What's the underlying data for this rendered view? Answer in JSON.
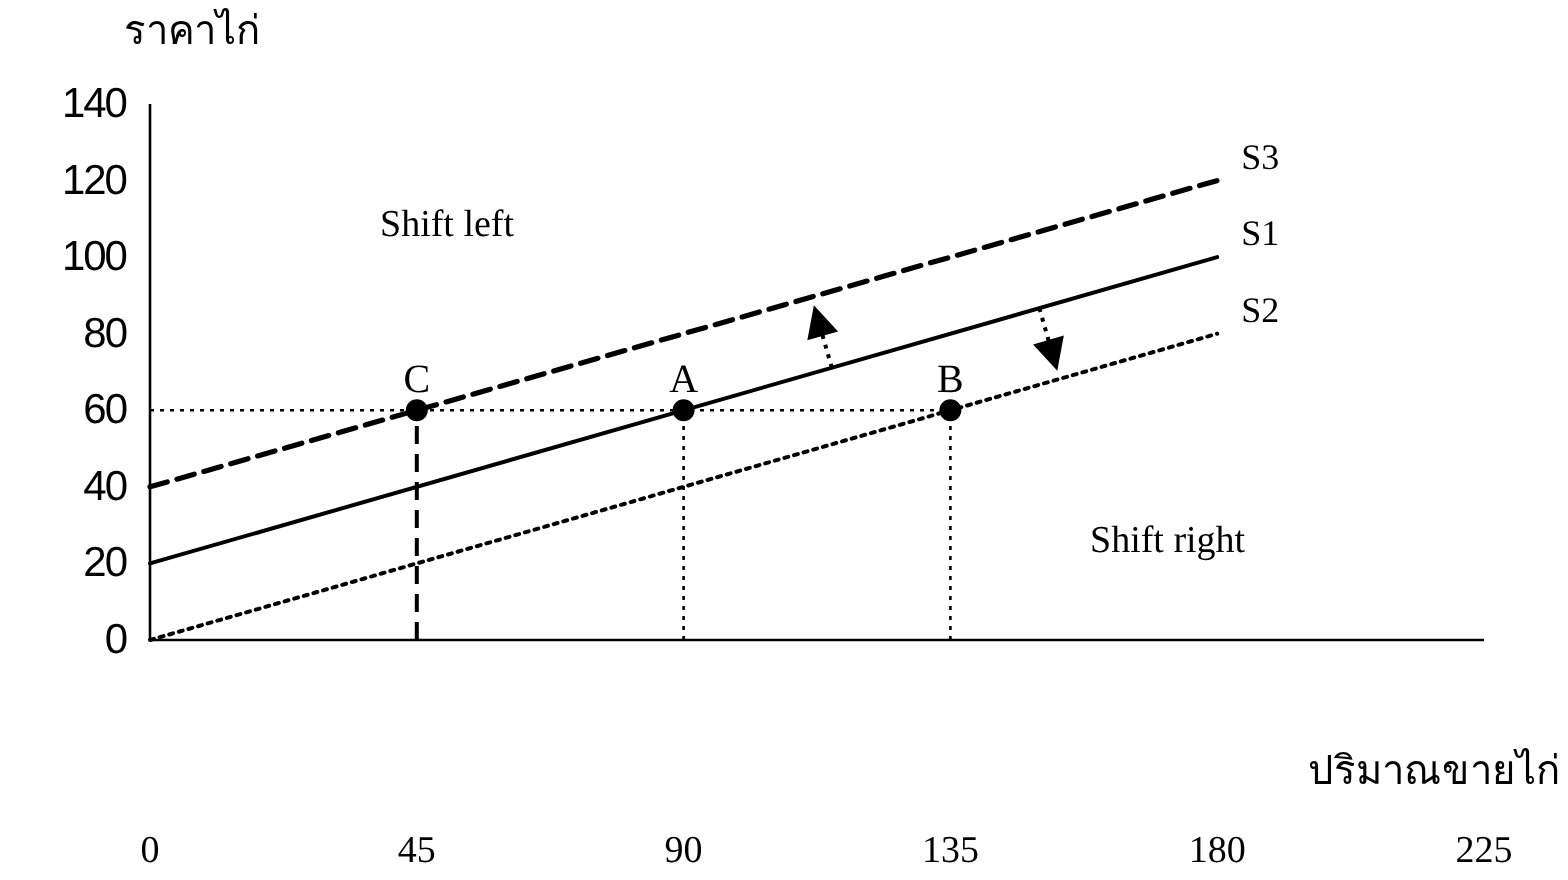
{
  "chart_data": {
    "type": "line",
    "xlabel": "ปริมาณขายไก่",
    "ylabel": "ราคาไก่",
    "xlim": [
      0,
      225
    ],
    "ylim": [
      0,
      140
    ],
    "xticks": [
      0,
      45,
      90,
      135,
      180,
      225
    ],
    "yticks": [
      0,
      20,
      40,
      60,
      80,
      100,
      120,
      140
    ],
    "grid": false,
    "legend": false,
    "marker": "none",
    "series": [
      {
        "name": "S1",
        "color": "#000000",
        "x": [
          0,
          180
        ],
        "values": [
          20,
          100
        ],
        "line_style": "solid"
      },
      {
        "name": "S2",
        "color": "#000000",
        "x": [
          0,
          180
        ],
        "values": [
          0,
          80
        ],
        "line_style": "dotted"
      },
      {
        "name": "S3",
        "color": "#000000",
        "x": [
          0,
          180
        ],
        "values": [
          40,
          120
        ],
        "line_style": "dashed"
      },
      {
        "type": "scatter",
        "color": "#000000",
        "x": [
          45,
          90,
          135
        ],
        "values": [
          60,
          60,
          60
        ],
        "marker": "circle"
      }
    ],
    "ref_lines": [
      {
        "axis": "y",
        "value": 60,
        "line_style": "dotted"
      },
      {
        "axis": "x",
        "value": 45,
        "line_style": "dashed"
      },
      {
        "axis": "x",
        "value": 90,
        "line_style": "dotted"
      },
      {
        "axis": "x",
        "value": 135,
        "line_style": "dotted"
      }
    ],
    "annotations": [
      {
        "text": "C",
        "x": 45,
        "y": 60
      },
      {
        "text": "A",
        "x": 90,
        "y": 60
      },
      {
        "text": "B",
        "x": 135,
        "y": 60
      },
      "Shift left",
      "Shift right"
    ]
  }
}
